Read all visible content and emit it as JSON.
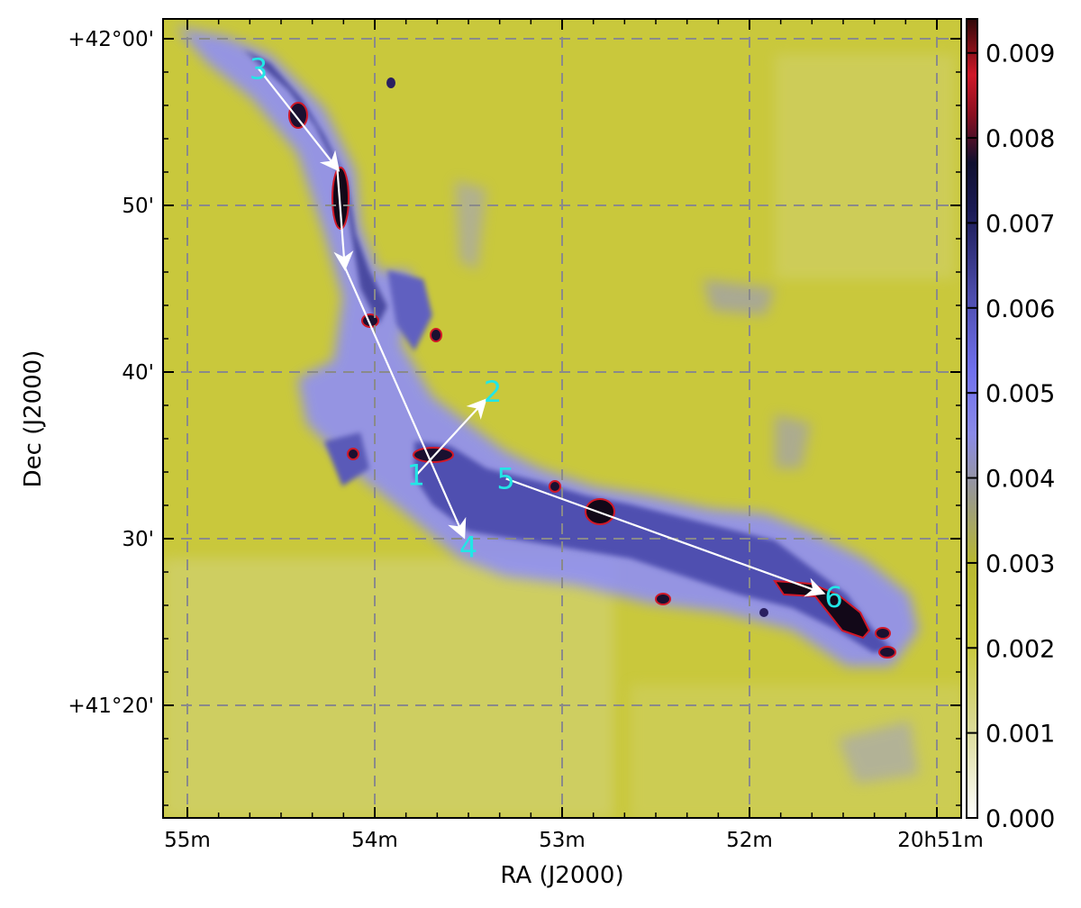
{
  "map": {
    "xlabel": "RA (J2000)",
    "ylabel": "Dec (J2000)",
    "x_ticks": [
      {
        "label": "55m",
        "ra_min": 55
      },
      {
        "label": "54m",
        "ra_min": 54
      },
      {
        "label": "53m",
        "ra_min": 53
      },
      {
        "label": "52m",
        "ra_min": 52
      },
      {
        "label": "20h51m",
        "ra_min": 51
      }
    ],
    "y_ticks": [
      {
        "label": "+42°00'",
        "dec_arcmin": 60
      },
      {
        "label": "50'",
        "dec_arcmin": 50
      },
      {
        "label": "40'",
        "dec_arcmin": 40
      },
      {
        "label": "30'",
        "dec_arcmin": 30
      },
      {
        "label": "+41°20'",
        "dec_arcmin": 20
      }
    ],
    "grid": true,
    "colorbar": {
      "min": 0.0,
      "max": 0.0094,
      "ticks": [
        "0.000",
        "0.001",
        "0.002",
        "0.003",
        "0.004",
        "0.005",
        "0.006",
        "0.007",
        "0.008",
        "0.009"
      ],
      "colors": [
        "#ffffff",
        "#c9c85a",
        "#bcbc1e",
        "#8f8f7a",
        "#8585ff",
        "#3a3a8a",
        "#120a20",
        "#b01525",
        "#3a0a0a"
      ]
    },
    "markers": [
      {
        "label": "1",
        "ra_min": 53.78,
        "dec_arcmin": 33.8
      },
      {
        "label": "2",
        "ra_min": 53.37,
        "dec_arcmin": 38.8
      },
      {
        "label": "3",
        "ra_min": 54.62,
        "dec_arcmin": 58.2
      },
      {
        "label": "4",
        "ra_min": 53.5,
        "dec_arcmin": 29.5
      },
      {
        "label": "5",
        "ra_min": 53.3,
        "dec_arcmin": 33.6
      },
      {
        "label": "6",
        "ra_min": 51.55,
        "dec_arcmin": 26.5
      }
    ],
    "arrows": [
      {
        "from": "1",
        "to": "2"
      },
      {
        "from": "3",
        "via": [
          [
            54.2,
            52.2
          ],
          [
            54.16,
            46.3
          ]
        ],
        "to": "4"
      },
      {
        "from": "5",
        "to": "6"
      }
    ],
    "marker_color": "#22e6e6",
    "arrow_color": "#ffffff"
  }
}
